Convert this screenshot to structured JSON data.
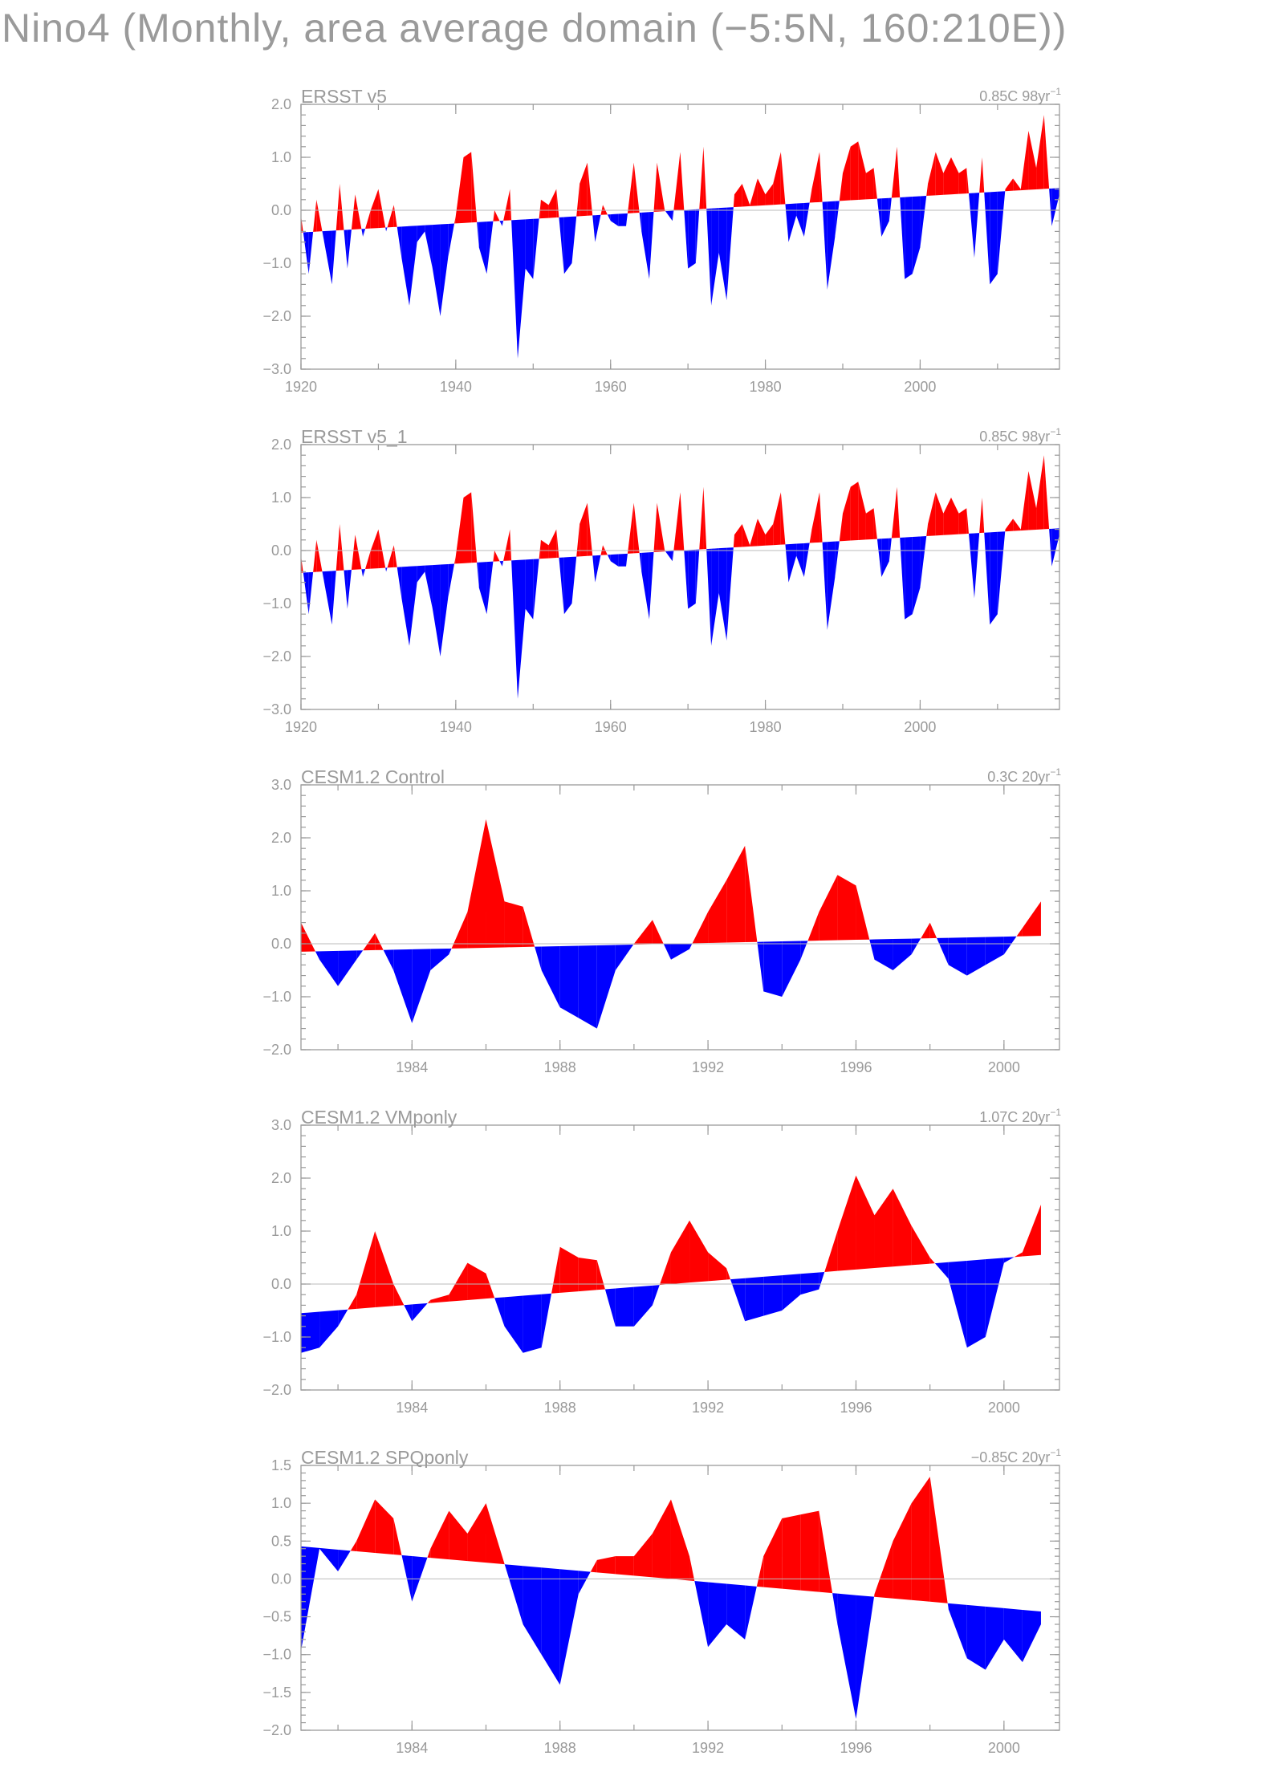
{
  "title": "Nino4 (Monthly, area average domain (−5:5N, 160:210E))",
  "colors": {
    "positive": "#ff0000",
    "negative": "#0000ff",
    "text": "#9a9a9a"
  },
  "chart_data": [
    {
      "type": "area",
      "title": "ERSST v5",
      "trend_label": "0.85C 98yr",
      "trend_superscript": "−1",
      "xlim": [
        1920,
        2018
      ],
      "ylim": [
        -3.0,
        2.0
      ],
      "x_ticks": [
        1920,
        1940,
        1960,
        1980,
        2000
      ],
      "x_tick_labels": [
        "1920",
        "1940",
        "1960",
        "1980",
        "2000"
      ],
      "y_ticks": [
        -3.0,
        -2.0,
        -1.0,
        0.0,
        1.0,
        2.0
      ],
      "y_tick_labels": [
        "−3.0",
        "−2.0",
        "−1.0",
        "0.0",
        "1.0",
        "2.0"
      ],
      "trend": {
        "start": -0.42,
        "end": 0.42
      },
      "x": [
        1920.0,
        1921.0,
        1922.0,
        1923.0,
        1924.0,
        1925.0,
        1926.0,
        1927.0,
        1928.0,
        1929.0,
        1930.0,
        1931.0,
        1932.0,
        1933.0,
        1934.0,
        1935.0,
        1936.0,
        1937.0,
        1938.0,
        1939.0,
        1940.0,
        1941.0,
        1942.0,
        1943.0,
        1944.0,
        1945.0,
        1946.0,
        1947.0,
        1948.0,
        1949.0,
        1950.0,
        1951.0,
        1952.0,
        1953.0,
        1954.0,
        1955.0,
        1956.0,
        1957.0,
        1958.0,
        1959.0,
        1960.0,
        1961.0,
        1962.0,
        1963.0,
        1964.0,
        1965.0,
        1966.0,
        1967.0,
        1968.0,
        1969.0,
        1970.0,
        1971.0,
        1972.0,
        1973.0,
        1974.0,
        1975.0,
        1976.0,
        1977.0,
        1978.0,
        1979.0,
        1980.0,
        1981.0,
        1982.0,
        1983.0,
        1984.0,
        1985.0,
        1986.0,
        1987.0,
        1988.0,
        1989.0,
        1990.0,
        1991.0,
        1992.0,
        1993.0,
        1994.0,
        1995.0,
        1996.0,
        1997.0,
        1998.0,
        1999.0,
        2000.0,
        2001.0,
        2002.0,
        2003.0,
        2004.0,
        2005.0,
        2006.0,
        2007.0,
        2008.0,
        2009.0,
        2010.0,
        2011.0,
        2012.0,
        2013.0,
        2014.0,
        2015.0,
        2016.0,
        2017.0,
        2018.0
      ],
      "values": [
        -0.1,
        -1.2,
        0.2,
        -0.6,
        -1.4,
        0.5,
        -1.1,
        0.3,
        -0.5,
        0.0,
        0.4,
        -0.4,
        0.1,
        -0.9,
        -1.8,
        -0.6,
        -0.4,
        -1.1,
        -2.0,
        -0.9,
        -0.1,
        1.0,
        1.1,
        -0.7,
        -1.2,
        0.0,
        -0.3,
        0.4,
        -2.8,
        -1.1,
        -1.3,
        0.2,
        0.1,
        0.4,
        -1.2,
        -1.0,
        0.5,
        0.9,
        -0.6,
        0.1,
        -0.2,
        -0.3,
        -0.3,
        0.9,
        -0.4,
        -1.3,
        0.9,
        0.0,
        -0.2,
        1.1,
        -1.1,
        -1.0,
        1.2,
        -1.8,
        -0.8,
        -1.7,
        0.3,
        0.5,
        0.1,
        0.6,
        0.3,
        0.5,
        1.1,
        -0.6,
        -0.1,
        -0.5,
        0.4,
        1.1,
        -1.5,
        -0.5,
        0.7,
        1.2,
        1.3,
        0.7,
        0.8,
        -0.5,
        -0.2,
        1.2,
        -1.3,
        -1.2,
        -0.7,
        0.5,
        1.1,
        0.7,
        1.0,
        0.7,
        0.8,
        -0.9,
        1.0,
        -1.4,
        -1.2,
        0.4,
        0.6,
        0.4,
        1.5,
        0.8,
        1.8,
        -0.3,
        0.3
      ]
    },
    {
      "type": "area",
      "title": "ERSST v5_1",
      "trend_label": "0.85C 98yr",
      "trend_superscript": "−1",
      "xlim": [
        1920,
        2018
      ],
      "ylim": [
        -3.0,
        2.0
      ],
      "x_ticks": [
        1920,
        1940,
        1960,
        1980,
        2000
      ],
      "x_tick_labels": [
        "1920",
        "1940",
        "1960",
        "1980",
        "2000"
      ],
      "y_ticks": [
        -3.0,
        -2.0,
        -1.0,
        0.0,
        1.0,
        2.0
      ],
      "y_tick_labels": [
        "−3.0",
        "−2.0",
        "−1.0",
        "0.0",
        "1.0",
        "2.0"
      ],
      "trend": {
        "start": -0.42,
        "end": 0.42
      },
      "x": [
        1920.0,
        1921.0,
        1922.0,
        1923.0,
        1924.0,
        1925.0,
        1926.0,
        1927.0,
        1928.0,
        1929.0,
        1930.0,
        1931.0,
        1932.0,
        1933.0,
        1934.0,
        1935.0,
        1936.0,
        1937.0,
        1938.0,
        1939.0,
        1940.0,
        1941.0,
        1942.0,
        1943.0,
        1944.0,
        1945.0,
        1946.0,
        1947.0,
        1948.0,
        1949.0,
        1950.0,
        1951.0,
        1952.0,
        1953.0,
        1954.0,
        1955.0,
        1956.0,
        1957.0,
        1958.0,
        1959.0,
        1960.0,
        1961.0,
        1962.0,
        1963.0,
        1964.0,
        1965.0,
        1966.0,
        1967.0,
        1968.0,
        1969.0,
        1970.0,
        1971.0,
        1972.0,
        1973.0,
        1974.0,
        1975.0,
        1976.0,
        1977.0,
        1978.0,
        1979.0,
        1980.0,
        1981.0,
        1982.0,
        1983.0,
        1984.0,
        1985.0,
        1986.0,
        1987.0,
        1988.0,
        1989.0,
        1990.0,
        1991.0,
        1992.0,
        1993.0,
        1994.0,
        1995.0,
        1996.0,
        1997.0,
        1998.0,
        1999.0,
        2000.0,
        2001.0,
        2002.0,
        2003.0,
        2004.0,
        2005.0,
        2006.0,
        2007.0,
        2008.0,
        2009.0,
        2010.0,
        2011.0,
        2012.0,
        2013.0,
        2014.0,
        2015.0,
        2016.0,
        2017.0,
        2018.0
      ],
      "values": [
        -0.1,
        -1.2,
        0.2,
        -0.6,
        -1.4,
        0.5,
        -1.1,
        0.3,
        -0.5,
        0.0,
        0.4,
        -0.4,
        0.1,
        -0.9,
        -1.8,
        -0.6,
        -0.4,
        -1.1,
        -2.0,
        -0.9,
        -0.1,
        1.0,
        1.1,
        -0.7,
        -1.2,
        0.0,
        -0.3,
        0.4,
        -2.8,
        -1.1,
        -1.3,
        0.2,
        0.1,
        0.4,
        -1.2,
        -1.0,
        0.5,
        0.9,
        -0.6,
        0.1,
        -0.2,
        -0.3,
        -0.3,
        0.9,
        -0.4,
        -1.3,
        0.9,
        0.0,
        -0.2,
        1.1,
        -1.1,
        -1.0,
        1.2,
        -1.8,
        -0.8,
        -1.7,
        0.3,
        0.5,
        0.1,
        0.6,
        0.3,
        0.5,
        1.1,
        -0.6,
        -0.1,
        -0.5,
        0.4,
        1.1,
        -1.5,
        -0.5,
        0.7,
        1.2,
        1.3,
        0.7,
        0.8,
        -0.5,
        -0.2,
        1.2,
        -1.3,
        -1.2,
        -0.7,
        0.5,
        1.1,
        0.7,
        1.0,
        0.7,
        0.8,
        -0.9,
        1.0,
        -1.4,
        -1.2,
        0.4,
        0.6,
        0.4,
        1.5,
        0.8,
        1.8,
        -0.3,
        0.3
      ]
    },
    {
      "type": "area",
      "title": "CESM1.2 Control",
      "trend_label": "0.3C 20yr",
      "trend_superscript": "−1",
      "xlim": [
        1981,
        2001.5
      ],
      "ylim": [
        -2.0,
        3.0
      ],
      "x_ticks": [
        1984,
        1988,
        1992,
        1996,
        2000
      ],
      "x_tick_labels": [
        "1984",
        "1988",
        "1992",
        "1996",
        "2000"
      ],
      "y_ticks": [
        -2.0,
        -1.0,
        0.0,
        1.0,
        2.0,
        3.0
      ],
      "y_tick_labels": [
        "−2.0",
        "−1.0",
        "0.0",
        "1.0",
        "2.0",
        "3.0"
      ],
      "trend": {
        "start": -0.15,
        "end": 0.15
      },
      "x": [
        1981.0,
        1981.5,
        1982.0,
        1982.5,
        1983.0,
        1983.5,
        1984.0,
        1984.5,
        1985.0,
        1985.5,
        1986.0,
        1986.5,
        1987.0,
        1987.5,
        1988.0,
        1988.5,
        1989.0,
        1989.5,
        1990.0,
        1990.5,
        1991.0,
        1991.5,
        1992.0,
        1992.5,
        1993.0,
        1993.5,
        1994.0,
        1994.5,
        1995.0,
        1995.5,
        1996.0,
        1996.5,
        1997.0,
        1997.5,
        1998.0,
        1998.5,
        1999.0,
        1999.5,
        2000.0,
        2000.5,
        2001.0
      ],
      "values": [
        0.4,
        -0.3,
        -0.8,
        -0.3,
        0.2,
        -0.5,
        -1.5,
        -0.5,
        -0.2,
        0.6,
        2.35,
        0.8,
        0.7,
        -0.5,
        -1.2,
        -1.4,
        -1.6,
        -0.5,
        0.0,
        0.45,
        -0.3,
        -0.1,
        0.6,
        1.2,
        1.85,
        -0.9,
        -1.0,
        -0.3,
        0.6,
        1.3,
        1.1,
        -0.3,
        -0.5,
        -0.2,
        0.4,
        -0.4,
        -0.6,
        -0.4,
        -0.2,
        0.3,
        0.8
      ]
    },
    {
      "type": "area",
      "title": "CESM1.2 VMponly",
      "trend_label": "1.07C 20yr",
      "trend_superscript": "−1",
      "xlim": [
        1981,
        2001.5
      ],
      "ylim": [
        -2.0,
        3.0
      ],
      "x_ticks": [
        1984,
        1988,
        1992,
        1996,
        2000
      ],
      "x_tick_labels": [
        "1984",
        "1988",
        "1992",
        "1996",
        "2000"
      ],
      "y_ticks": [
        -2.0,
        -1.0,
        0.0,
        1.0,
        2.0,
        3.0
      ],
      "y_tick_labels": [
        "−2.0",
        "−1.0",
        "0.0",
        "1.0",
        "2.0",
        "3.0"
      ],
      "trend": {
        "start": -0.55,
        "end": 0.55
      },
      "x": [
        1981.0,
        1981.5,
        1982.0,
        1982.5,
        1983.0,
        1983.5,
        1984.0,
        1984.5,
        1985.0,
        1985.5,
        1986.0,
        1986.5,
        1987.0,
        1987.5,
        1988.0,
        1988.5,
        1989.0,
        1989.5,
        1990.0,
        1990.5,
        1991.0,
        1991.5,
        1992.0,
        1992.5,
        1993.0,
        1993.5,
        1994.0,
        1994.5,
        1995.0,
        1995.5,
        1996.0,
        1996.5,
        1997.0,
        1997.5,
        1998.0,
        1998.5,
        1999.0,
        1999.5,
        2000.0,
        2000.5,
        2001.0
      ],
      "values": [
        -1.3,
        -1.2,
        -0.8,
        -0.2,
        1.0,
        0.0,
        -0.7,
        -0.3,
        -0.2,
        0.4,
        0.2,
        -0.8,
        -1.3,
        -1.2,
        0.7,
        0.5,
        0.45,
        -0.8,
        -0.8,
        -0.4,
        0.6,
        1.2,
        0.6,
        0.3,
        -0.7,
        -0.6,
        -0.5,
        -0.2,
        -0.1,
        1.0,
        2.05,
        1.3,
        1.8,
        1.1,
        0.5,
        0.1,
        -1.2,
        -1.0,
        0.4,
        0.6,
        1.5
      ]
    },
    {
      "type": "area",
      "title": "CESM1.2 SPQponly",
      "trend_label": "−0.85C 20yr",
      "trend_superscript": "−1",
      "xlim": [
        1981,
        2001.5
      ],
      "ylim": [
        -2.0,
        1.5
      ],
      "x_ticks": [
        1984,
        1988,
        1992,
        1996,
        2000
      ],
      "x_tick_labels": [
        "1984",
        "1988",
        "1992",
        "1996",
        "2000"
      ],
      "y_ticks": [
        -2.0,
        -1.5,
        -1.0,
        -0.5,
        0.0,
        0.5,
        1.0,
        1.5
      ],
      "y_tick_labels": [
        "−2.0",
        "−1.5",
        "−1.0",
        "−0.5",
        "0.0",
        "0.5",
        "1.0",
        "1.5"
      ],
      "trend": {
        "start": 0.43,
        "end": -0.43
      },
      "x": [
        1981.0,
        1981.5,
        1982.0,
        1982.5,
        1983.0,
        1983.5,
        1984.0,
        1984.5,
        1985.0,
        1985.5,
        1986.0,
        1986.5,
        1987.0,
        1987.5,
        1988.0,
        1988.5,
        1989.0,
        1989.5,
        1990.0,
        1990.5,
        1991.0,
        1991.5,
        1992.0,
        1992.5,
        1993.0,
        1993.5,
        1994.0,
        1994.5,
        1995.0,
        1995.5,
        1996.0,
        1996.5,
        1997.0,
        1997.5,
        1998.0,
        1998.5,
        1999.0,
        1999.5,
        2000.0,
        2000.5,
        2001.0
      ],
      "values": [
        -0.95,
        0.4,
        0.1,
        0.5,
        1.05,
        0.8,
        -0.3,
        0.4,
        0.9,
        0.6,
        1.0,
        0.2,
        -0.6,
        -1.0,
        -1.4,
        -0.2,
        0.25,
        0.3,
        0.3,
        0.6,
        1.05,
        0.3,
        -0.9,
        -0.6,
        -0.8,
        0.3,
        0.8,
        0.85,
        0.9,
        -0.6,
        -1.85,
        -0.2,
        0.5,
        1.0,
        1.35,
        -0.4,
        -1.05,
        -1.2,
        -0.8,
        -1.1,
        -0.6
      ]
    }
  ]
}
